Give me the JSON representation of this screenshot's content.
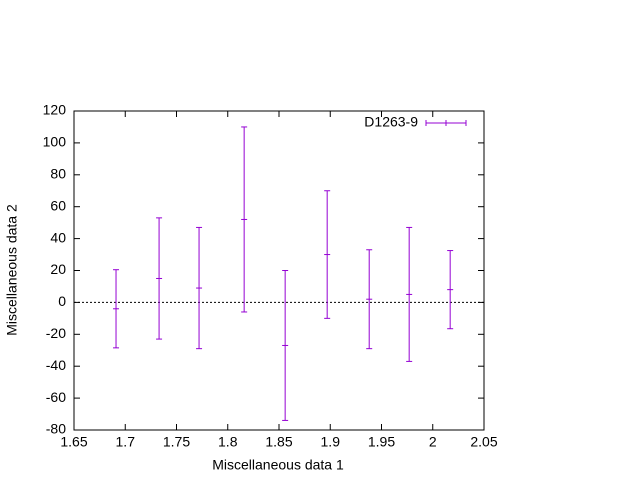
{
  "chart_data": {
    "type": "errorbar",
    "xlabel": "Miscellaneous data 1",
    "ylabel": "Miscellaneous data 2",
    "x": [
      1.691,
      1.733,
      1.772,
      1.816,
      1.856,
      1.897,
      1.938,
      1.977,
      2.017
    ],
    "series": [
      {
        "name": "D1263-9",
        "color": "#9400d3",
        "values": [
          -4,
          15,
          9,
          52,
          -27,
          30,
          2,
          5,
          8
        ],
        "errors": [
          24.5,
          38,
          38,
          58,
          47,
          40,
          31,
          42,
          24.5
        ]
      }
    ],
    "xlim": [
      1.65,
      2.05
    ],
    "xticks": [
      1.65,
      1.7,
      1.75,
      1.8,
      1.85,
      1.9,
      1.95,
      2,
      2.05
    ],
    "ylim": [
      -80,
      120
    ],
    "yticks": [
      -80,
      -60,
      -40,
      -20,
      0,
      20,
      40,
      60,
      80,
      100,
      120
    ],
    "zero_line": true,
    "legend": "top-right"
  }
}
